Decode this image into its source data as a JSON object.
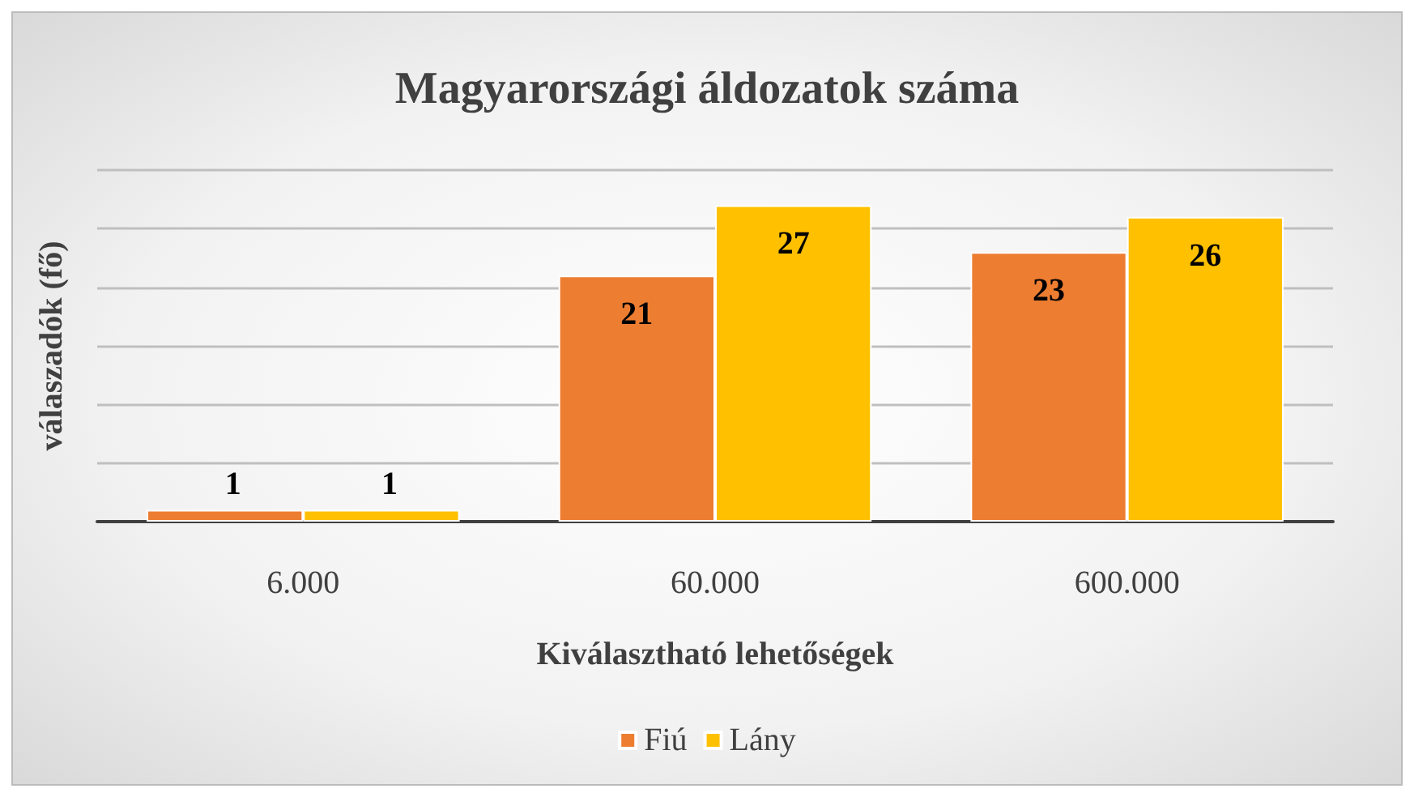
{
  "chart_data": {
    "type": "bar",
    "title": "Magyarországi áldozatok száma",
    "xlabel": "Kiválasztható lehetőségek",
    "ylabel": "válaszadók (fő)",
    "categories": [
      "6.000",
      "60.000",
      "600.000"
    ],
    "series": [
      {
        "name": "Fiú",
        "color": "#ed7d31",
        "values": [
          1,
          21,
          23
        ]
      },
      {
        "name": "Lány",
        "color": "#ffc000",
        "values": [
          1,
          27,
          26
        ]
      }
    ],
    "ylim": [
      0,
      30
    ],
    "yticks": [
      {
        "value": 0,
        "label": null
      },
      {
        "value": 5,
        "label": null
      },
      {
        "value": 10,
        "label": null
      },
      {
        "value": 15,
        "label": null
      },
      {
        "value": 20,
        "label": null
      },
      {
        "value": 25,
        "label": null
      },
      {
        "value": 30,
        "label": null
      }
    ],
    "tick_labels": "x",
    "grid": "y",
    "legend": "bottom",
    "data_labels": true
  }
}
